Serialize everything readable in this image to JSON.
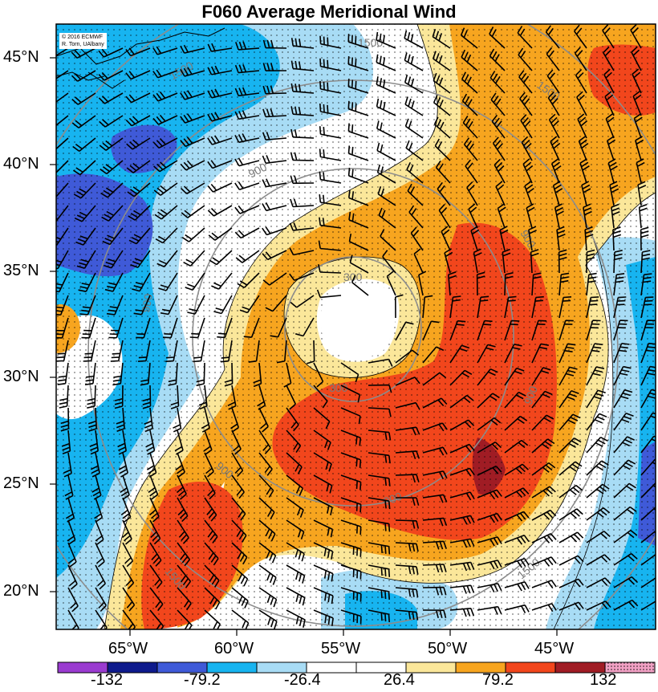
{
  "title": "F060 Average Meridional Wind",
  "credit": {
    "line1": "© 2016 ECMWF",
    "line2": "R. Torn, UAlbany"
  },
  "lat_labels": [
    "45°N",
    "40°N",
    "35°N",
    "30°N",
    "25°N",
    "20°N"
  ],
  "lon_labels": [
    "65°W",
    "60°W",
    "55°W",
    "50°W",
    "45°W"
  ],
  "colorbar": {
    "labels": [
      "-132",
      "-79.2",
      "-26.4",
      "26.4",
      "79.2",
      "132"
    ],
    "colors": [
      "#9a3bd0",
      "#0e1a8c",
      "#3f5ad8",
      "#17b4f0",
      "#a8dcf5",
      "#ffffff",
      "#ffffff",
      "#fbe79a",
      "#f7a51f",
      "#f2461c",
      "#a01c24",
      "#f1a1c4"
    ]
  },
  "contour_labels": [
    "1500",
    "1500",
    "1500",
    "900",
    "900",
    "900",
    "900",
    "900",
    "900",
    "300",
    "300",
    "1500",
    "1500"
  ],
  "colors": {
    "frame": "#000000",
    "contour": "#8c8c8c"
  }
}
